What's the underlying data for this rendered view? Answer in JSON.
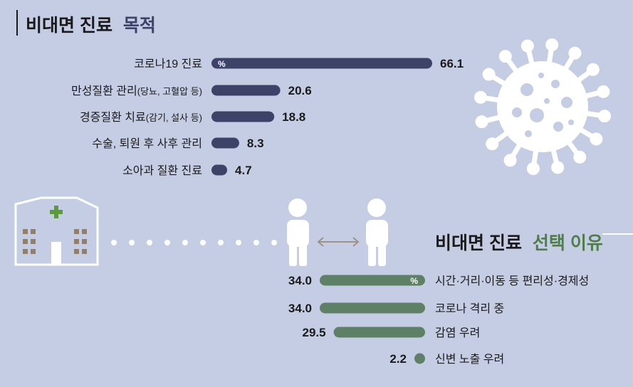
{
  "colors": {
    "background": "#c5cde4",
    "top_bar": "#3d4368",
    "bottom_bar": "#5e8066",
    "title_accent_top": "#3d4368",
    "title_accent_bottom": "#4f7d4a",
    "icon_white": "#ffffff",
    "window_brown": "#8f7f6c",
    "cross_green": "#5c9b3c",
    "arrow": "#a09386"
  },
  "chart_data": [
    {
      "type": "bar",
      "orientation": "horizontal",
      "title_main": "비대면 진료",
      "title_accent": "목적",
      "unit": "%",
      "categories": [
        {
          "label": "코로나19 진료",
          "sub": ""
        },
        {
          "label": "만성질환 관리",
          "sub": "(당뇨, 고혈압 등)"
        },
        {
          "label": "경증질환 치료",
          "sub": "(감기, 설사 등)"
        },
        {
          "label": "수술, 퇴원 후 사후 관리",
          "sub": ""
        },
        {
          "label": "소아과 질환 진료",
          "sub": ""
        }
      ],
      "values": [
        66.1,
        20.6,
        18.8,
        8.3,
        4.7
      ],
      "value_labels": [
        "66.1",
        "20.6",
        "18.8",
        "8.3",
        "4.7"
      ]
    },
    {
      "type": "bar",
      "orientation": "horizontal",
      "title_main": "비대면 진료",
      "title_accent": "선택 이유",
      "unit": "%",
      "categories": [
        {
          "label": "시간·거리·이동 등 편리성·경제성",
          "sub": ""
        },
        {
          "label": "코로나 격리 중",
          "sub": ""
        },
        {
          "label": "감염 우려",
          "sub": ""
        },
        {
          "label": "신변 노출 우려",
          "sub": ""
        }
      ],
      "values": [
        34.0,
        34.0,
        29.5,
        2.2
      ],
      "value_labels": [
        "34.0",
        "34.0",
        "29.5",
        "2.2"
      ]
    }
  ],
  "icons": {
    "virus": "virus-icon",
    "hospital": "hospital-icon",
    "person_left": "person-icon",
    "person_right": "person-icon",
    "arrow": "double-arrow-icon"
  }
}
